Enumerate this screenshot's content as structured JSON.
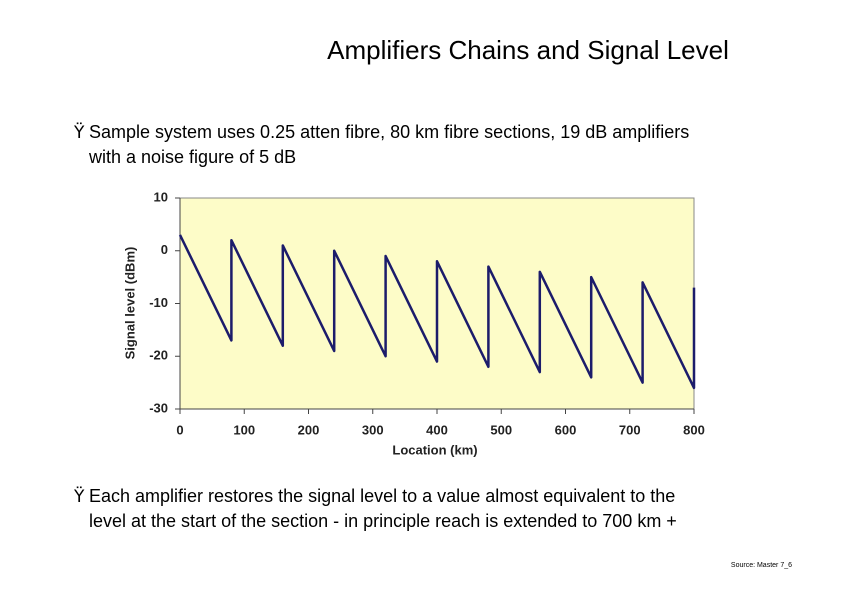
{
  "slide": {
    "title": "Amplifiers Chains and Signal Level",
    "bullet_mark": "Ÿ",
    "bullets_top": [
      "Sample system uses 0.25 atten fibre, 80 km fibre sections, 19 dB amplifiers",
      "with a noise figure of 5 dB"
    ],
    "bullets_bottom": [
      "Each amplifier restores the signal level to a value almost equivalent to the",
      "level at the start of the section - in principle reach is extended to 700 km +"
    ],
    "source": "Source: Master 7_6"
  },
  "chart_data": {
    "type": "line",
    "x_label": "Location (km)",
    "y_label": "Signal level (dBm)",
    "series": [
      {
        "color": "#1c1c6b",
        "x": [
          0,
          80,
          80,
          160,
          160,
          240,
          240,
          320,
          320,
          400,
          400,
          480,
          480,
          560,
          560,
          640,
          640,
          720,
          720,
          800,
          800
        ],
        "values": [
          3,
          -17,
          2,
          -18,
          1,
          -19,
          0,
          -20,
          -1,
          -21,
          -2,
          -22,
          -3,
          -23,
          -4,
          -24,
          -5,
          -25,
          -6,
          -26,
          -7
        ]
      }
    ],
    "xlim": [
      0,
      800
    ],
    "xticks": [
      0,
      100,
      200,
      300,
      400,
      500,
      600,
      700,
      800
    ],
    "ylim": [
      -30,
      10
    ],
    "yticks": [
      -30,
      -20,
      -10,
      0,
      10
    ],
    "plot_background": "#fdfcc8",
    "grid": false
  }
}
